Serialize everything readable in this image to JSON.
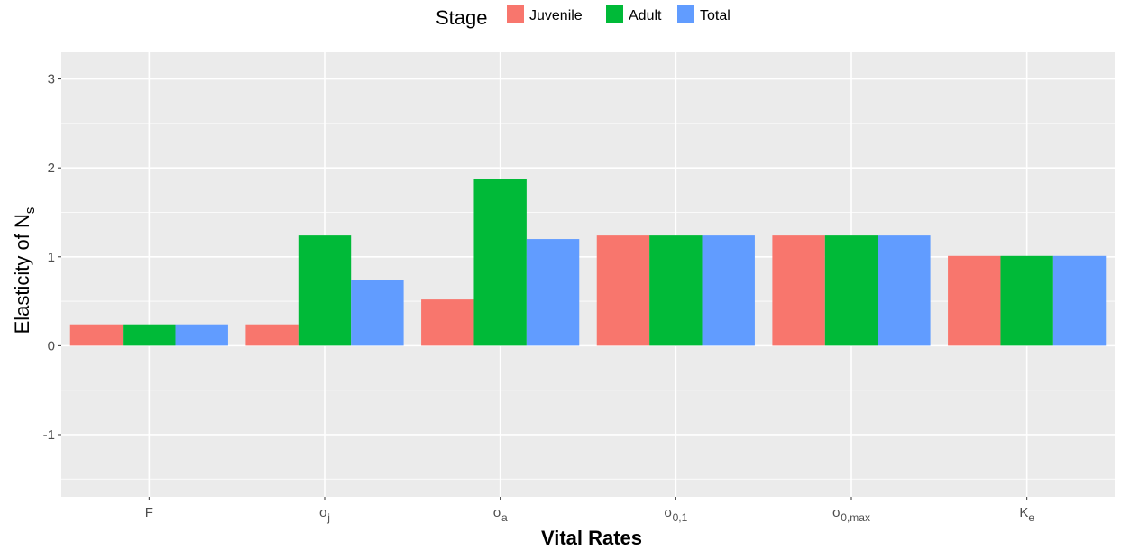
{
  "chart_data": {
    "type": "bar",
    "legend_title": "Stage",
    "legend_position": "top",
    "categories": [
      {
        "main": "F",
        "sub": ""
      },
      {
        "main": "σ",
        "sub": "j"
      },
      {
        "main": "σ",
        "sub": "a"
      },
      {
        "main": "σ",
        "sub": "0,1"
      },
      {
        "main": "σ",
        "sub": "0,max"
      },
      {
        "main": "K",
        "sub": "e"
      }
    ],
    "series": [
      {
        "name": "Juvenile",
        "color": "#F8766D",
        "values": [
          0.24,
          0.24,
          0.52,
          1.24,
          1.24,
          1.01
        ]
      },
      {
        "name": "Adult",
        "color": "#00BA38",
        "values": [
          0.24,
          1.24,
          1.88,
          1.24,
          1.24,
          1.01
        ]
      },
      {
        "name": "Total",
        "color": "#619CFF",
        "values": [
          0.24,
          0.74,
          1.2,
          1.24,
          1.24,
          1.01
        ]
      }
    ],
    "xlabel": "Vital Rates",
    "ylabel": {
      "main": "Elasticity of N",
      "sub": "s"
    },
    "ylim": [
      -1.7,
      3.3
    ],
    "yticks": [
      -1,
      0,
      1,
      2,
      3
    ],
    "grid": true,
    "panel_color": "#EBEBEB"
  }
}
